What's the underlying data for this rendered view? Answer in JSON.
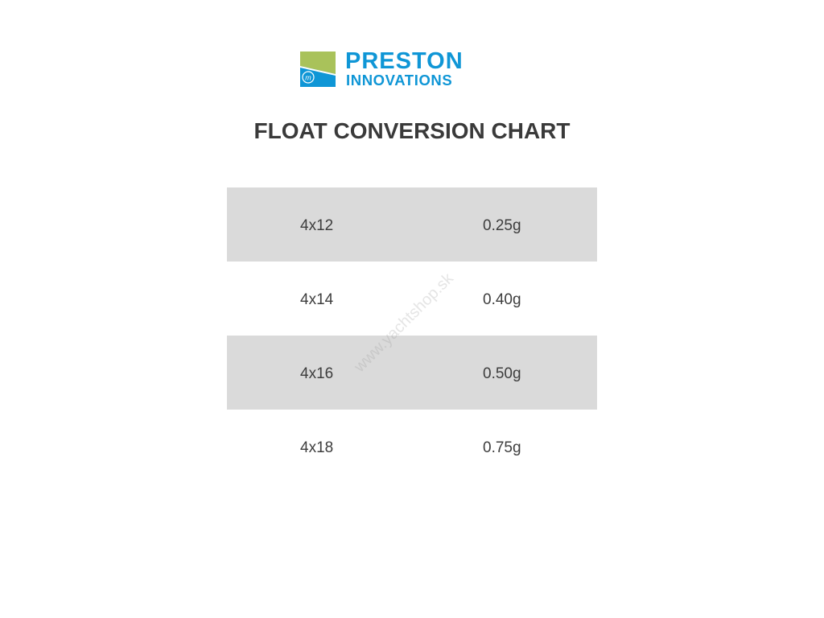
{
  "logo": {
    "line1": "PRESTON",
    "line2": "INNOVATIONS",
    "colors": {
      "blue": "#0f96d6",
      "green": "#a9c25a"
    }
  },
  "title": "FLOAT CONVERSION CHART",
  "rows": [
    {
      "size": "4x12",
      "weight": "0.25g"
    },
    {
      "size": "4x14",
      "weight": "0.40g"
    },
    {
      "size": "4x16",
      "weight": "0.50g"
    },
    {
      "size": "4x18",
      "weight": "0.75g"
    }
  ],
  "watermark": "www.yachtshop.sk"
}
